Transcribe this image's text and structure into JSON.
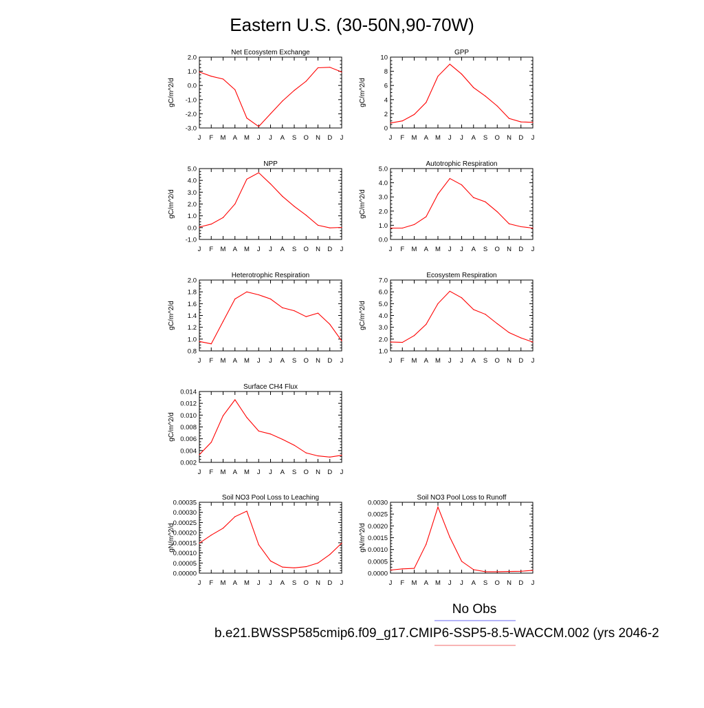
{
  "page": {
    "title": "Eastern U.S. (30-50N,90-70W)",
    "legend": {
      "obs_label": "No Obs",
      "obs_color": "#6a6af0",
      "model_label": "b.e21.BWSSP585cmip6.f09_g17.CMIP6-SSP5-8.5-WACCM.002 (yrs 2046-2",
      "model_color": "#f06a6a"
    }
  },
  "months": [
    "J",
    "F",
    "M",
    "A",
    "M",
    "J",
    "J",
    "A",
    "S",
    "O",
    "N",
    "D",
    "J"
  ],
  "line_color": "#ff0000",
  "chart_data": [
    {
      "type": "line",
      "title": "Net Ecosystem Exchange",
      "ylabel": "gC/m^2/d",
      "ylim": [
        -3.0,
        2.0
      ],
      "yticks": [
        "-3.0",
        "-2.0",
        "-1.0",
        "0.0",
        "1.0",
        "2.0"
      ],
      "values": [
        0.95,
        0.65,
        0.45,
        -0.3,
        -2.3,
        -2.9,
        -2.0,
        -1.1,
        -0.35,
        0.3,
        1.25,
        1.28,
        0.95
      ]
    },
    {
      "type": "line",
      "title": "GPP",
      "ylabel": "gC/m^2/d",
      "ylim": [
        0,
        10
      ],
      "yticks": [
        "0",
        "2",
        "4",
        "6",
        "8",
        "10"
      ],
      "values": [
        0.7,
        1.0,
        1.9,
        3.6,
        7.3,
        9.0,
        7.6,
        5.7,
        4.5,
        3.1,
        1.35,
        0.85,
        0.8
      ]
    },
    {
      "type": "line",
      "title": "NPP",
      "ylabel": "gC/m^2/d",
      "ylim": [
        -1.0,
        5.0
      ],
      "yticks": [
        "-1.0",
        "0.0",
        "1.0",
        "2.0",
        "3.0",
        "4.0",
        "5.0"
      ],
      "values": [
        0.05,
        0.3,
        0.85,
        2.0,
        4.1,
        4.65,
        3.7,
        2.65,
        1.8,
        1.05,
        0.2,
        -0.02,
        0.02
      ]
    },
    {
      "type": "line",
      "title": "Autotrophic Respiration",
      "ylabel": "gC/m^2/d",
      "ylim": [
        0.0,
        5.0
      ],
      "yticks": [
        "0.0",
        "1.0",
        "2.0",
        "3.0",
        "4.0",
        "5.0"
      ],
      "values": [
        0.8,
        0.8,
        1.05,
        1.6,
        3.2,
        4.3,
        3.85,
        2.95,
        2.65,
        1.95,
        1.1,
        0.9,
        0.8
      ]
    },
    {
      "type": "line",
      "title": "Heterotrophic Respiration",
      "ylabel": "gC/m^2/d",
      "ylim": [
        0.8,
        2.0
      ],
      "yticks": [
        "0.8",
        "1.0",
        "1.2",
        "1.4",
        "1.6",
        "1.8",
        "2.0"
      ],
      "values": [
        0.96,
        0.92,
        1.3,
        1.68,
        1.8,
        1.75,
        1.68,
        1.53,
        1.48,
        1.38,
        1.44,
        1.25,
        0.97
      ]
    },
    {
      "type": "line",
      "title": "Ecosystem Respiration",
      "ylabel": "gC/m^2/d",
      "ylim": [
        1.0,
        7.0
      ],
      "yticks": [
        "1.0",
        "2.0",
        "3.0",
        "4.0",
        "5.0",
        "6.0",
        "7.0"
      ],
      "values": [
        1.75,
        1.72,
        2.3,
        3.25,
        5.0,
        6.05,
        5.5,
        4.5,
        4.1,
        3.3,
        2.55,
        2.1,
        1.75
      ]
    },
    {
      "type": "line",
      "title": "Surface CH4 Flux",
      "ylabel": "gC/m^2/d",
      "ylim": [
        0.002,
        0.014
      ],
      "yticks": [
        "0.002",
        "0.004",
        "0.006",
        "0.008",
        "0.010",
        "0.012",
        "0.014"
      ],
      "values": [
        0.0033,
        0.0054,
        0.0099,
        0.0126,
        0.0096,
        0.0073,
        0.0068,
        0.0059,
        0.0049,
        0.0036,
        0.0031,
        0.0029,
        0.0032
      ]
    },
    {
      "type": "line",
      "title": "Soil NO3 Pool Loss to Leaching",
      "ylabel": "gN/m^2/d",
      "ylim": [
        0.0,
        0.00035
      ],
      "yticks": [
        "0.00000",
        "0.00005",
        "0.00010",
        "0.00015",
        "0.00020",
        "0.00025",
        "0.00030",
        "0.00035"
      ],
      "values": [
        0.000148,
        0.000188,
        0.000222,
        0.000279,
        0.000306,
        0.00014,
        6e-05,
        3e-05,
        2.6e-05,
        3.2e-05,
        5e-05,
        9.2e-05,
        0.000148
      ]
    },
    {
      "type": "line",
      "title": "Soil NO3 Pool Loss to Runoff",
      "ylabel": "gN/m^2/d",
      "ylim": [
        0.0,
        0.003
      ],
      "yticks": [
        "0.0000",
        "0.0005",
        "0.0010",
        "0.0015",
        "0.0020",
        "0.0025",
        "0.0030"
      ],
      "values": [
        0.00013,
        0.00018,
        0.0002,
        0.00122,
        0.0028,
        0.00152,
        0.0005,
        0.00015,
        6e-05,
        6e-05,
        7e-05,
        8e-05,
        0.00012
      ]
    }
  ]
}
